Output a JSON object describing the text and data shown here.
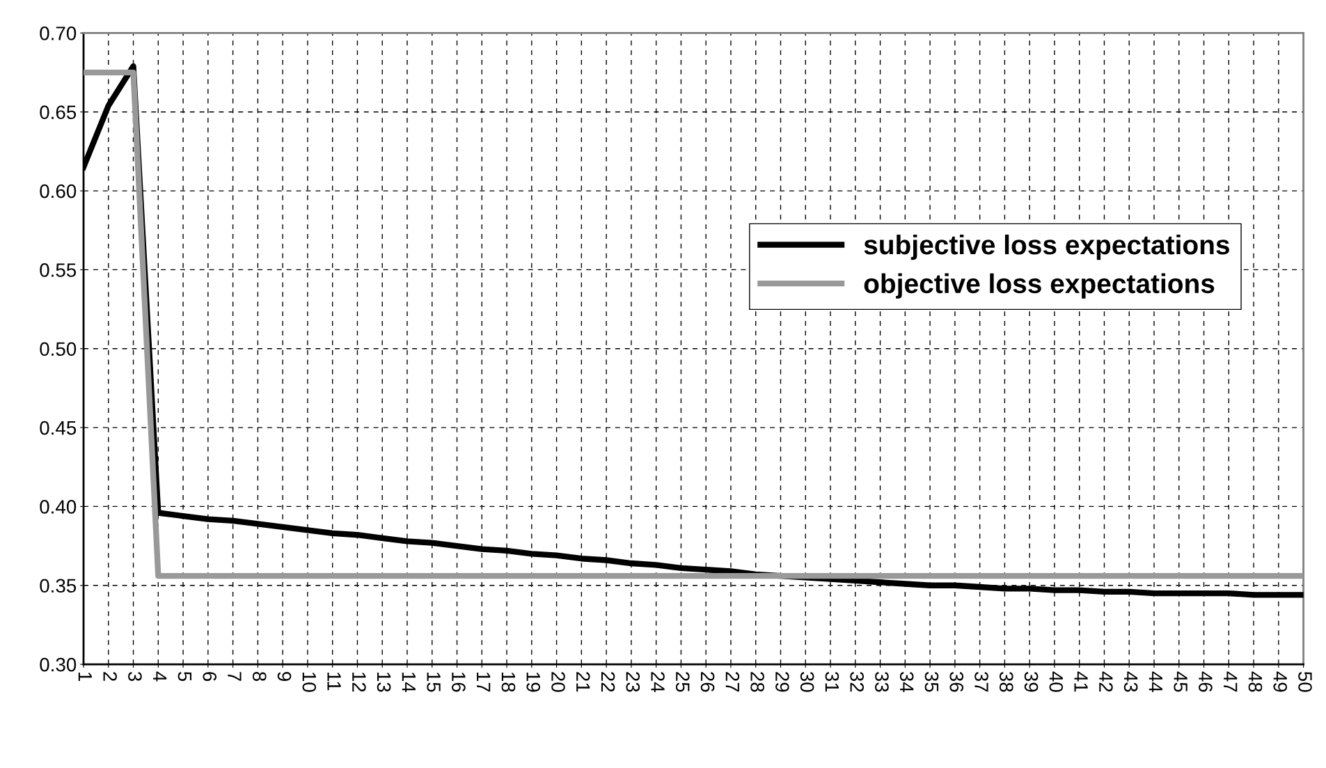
{
  "chart_data": {
    "type": "line",
    "categories": [
      "1",
      "2",
      "3",
      "4",
      "5",
      "6",
      "7",
      "8",
      "9",
      "10",
      "11",
      "12",
      "13",
      "14",
      "15",
      "16",
      "17",
      "18",
      "19",
      "20",
      "21",
      "22",
      "23",
      "24",
      "25",
      "26",
      "27",
      "28",
      "29",
      "30",
      "31",
      "32",
      "33",
      "34",
      "35",
      "36",
      "37",
      "38",
      "39",
      "40",
      "41",
      "42",
      "43",
      "44",
      "45",
      "46",
      "47",
      "48",
      "49",
      "50"
    ],
    "series": [
      {
        "name": "subjective loss expectations",
        "color": "#000000",
        "values": [
          0.615,
          0.654,
          0.679,
          0.396,
          0.394,
          0.392,
          0.391,
          0.389,
          0.387,
          0.385,
          0.383,
          0.382,
          0.38,
          0.378,
          0.377,
          0.375,
          0.373,
          0.372,
          0.37,
          0.369,
          0.367,
          0.366,
          0.364,
          0.363,
          0.361,
          0.36,
          0.359,
          0.357,
          0.356,
          0.355,
          0.354,
          0.353,
          0.352,
          0.351,
          0.35,
          0.35,
          0.349,
          0.348,
          0.348,
          0.347,
          0.347,
          0.346,
          0.346,
          0.345,
          0.345,
          0.345,
          0.345,
          0.344,
          0.344,
          0.344
        ]
      },
      {
        "name": "objective loss expectations",
        "color": "#999999",
        "values": [
          0.675,
          0.675,
          0.675,
          0.356,
          0.356,
          0.356,
          0.356,
          0.356,
          0.356,
          0.356,
          0.356,
          0.356,
          0.356,
          0.356,
          0.356,
          0.356,
          0.356,
          0.356,
          0.356,
          0.356,
          0.356,
          0.356,
          0.356,
          0.356,
          0.356,
          0.356,
          0.356,
          0.356,
          0.356,
          0.356,
          0.356,
          0.356,
          0.356,
          0.356,
          0.356,
          0.356,
          0.356,
          0.356,
          0.356,
          0.356,
          0.356,
          0.356,
          0.356,
          0.356,
          0.356,
          0.356,
          0.356,
          0.356,
          0.356,
          0.356
        ]
      }
    ],
    "ylim": [
      0.3,
      0.7
    ],
    "yticks": [
      {
        "value": 0.3,
        "label": "0.30"
      },
      {
        "value": 0.35,
        "label": "0.35"
      },
      {
        "value": 0.4,
        "label": "0.40"
      },
      {
        "value": 0.45,
        "label": "0.45"
      },
      {
        "value": 0.5,
        "label": "0.50"
      },
      {
        "value": 0.55,
        "label": "0.55"
      },
      {
        "value": 0.6,
        "label": "0.60"
      },
      {
        "value": 0.65,
        "label": "0.65"
      },
      {
        "value": 0.7,
        "label": "0.70"
      }
    ],
    "grid": true,
    "legend": "right",
    "marker": "none",
    "line_style": "solid"
  }
}
